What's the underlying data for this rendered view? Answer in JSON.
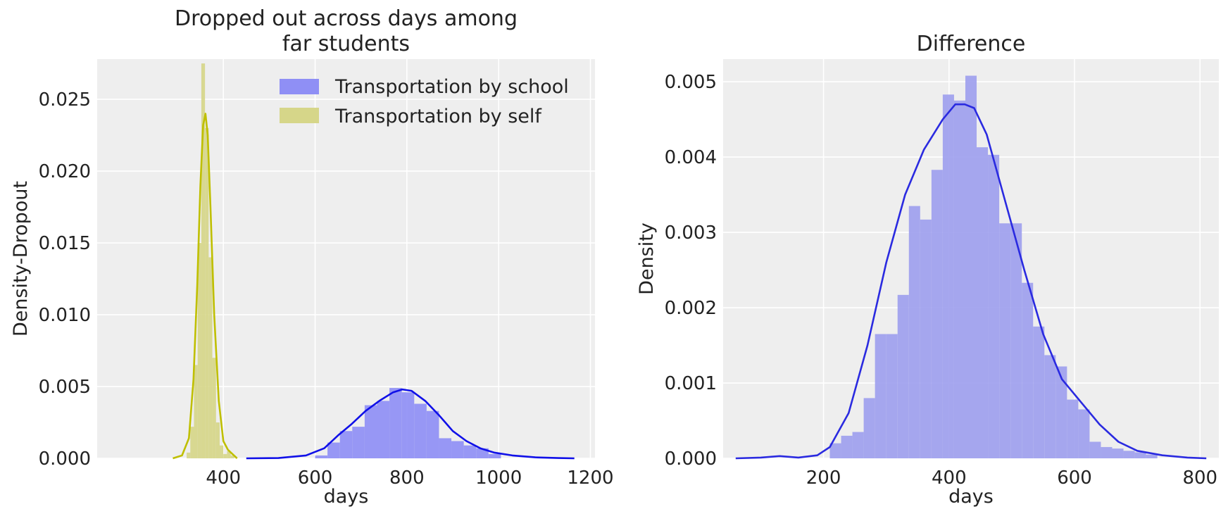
{
  "chart_data": [
    {
      "type": "area",
      "title_lines": [
        "Dropped out across days among",
        "far students"
      ],
      "xlabel": "days",
      "ylabel": "Density-Dropout",
      "xlim": [
        125,
        1210
      ],
      "ylim": [
        0,
        0.0278
      ],
      "xticks": [
        400,
        600,
        800,
        1000,
        1200
      ],
      "yticks": [
        0.0,
        0.005,
        0.01,
        0.015,
        0.02,
        0.025
      ],
      "ytick_labels": [
        "0.000",
        "0.005",
        "0.010",
        "0.015",
        "0.020",
        "0.025"
      ],
      "xtick_labels": [
        "400",
        "600",
        "800",
        "1000",
        "1200"
      ],
      "grid": true,
      "legend_position": "top-right",
      "series": [
        {
          "name": "Transportation by school",
          "hist_color": "#8f8ff5",
          "line_color": "#1010e8",
          "bin_edges": [
            600,
            627,
            654,
            681,
            708,
            735,
            762,
            789,
            816,
            843,
            870,
            897,
            924,
            951,
            978,
            1005
          ],
          "hist_values": [
            0.0002,
            0.0011,
            0.0019,
            0.0022,
            0.0037,
            0.004,
            0.0049,
            0.0046,
            0.0038,
            0.0033,
            0.0014,
            0.0012,
            0.0009,
            0.0007,
            0.0003
          ],
          "kde_x": [
            450,
            520,
            580,
            620,
            650,
            680,
            710,
            740,
            770,
            790,
            810,
            840,
            870,
            900,
            930,
            960,
            990,
            1030,
            1080,
            1130,
            1165
          ],
          "kde_y": [
            0.0,
            2e-05,
            0.0002,
            0.0007,
            0.0016,
            0.0024,
            0.0033,
            0.004,
            0.0046,
            0.0048,
            0.0047,
            0.004,
            0.003,
            0.0019,
            0.0012,
            0.0007,
            0.0004,
            0.0002,
            7e-05,
            2e-05,
            0.0
          ]
        },
        {
          "name": "Transportation by self",
          "hist_color": "#d6d689",
          "line_color": "#bfbf00",
          "bin_edges": [
            320,
            328,
            336,
            344,
            352,
            360,
            368,
            376,
            384,
            392,
            400,
            408,
            416,
            424
          ],
          "hist_values": [
            0.0004,
            0.0022,
            0.0065,
            0.015,
            0.0275,
            0.023,
            0.014,
            0.007,
            0.0025,
            0.0009,
            0.0003,
            0.0005,
            0.0002
          ],
          "kde_x": [
            290,
            310,
            325,
            335,
            343,
            350,
            356,
            361,
            366,
            372,
            380,
            390,
            400,
            410,
            420,
            430
          ],
          "kde_y": [
            0.0,
            0.0002,
            0.0014,
            0.0055,
            0.012,
            0.019,
            0.0232,
            0.024,
            0.0225,
            0.0175,
            0.01,
            0.004,
            0.0012,
            0.0006,
            0.0003,
            0.0
          ]
        }
      ]
    },
    {
      "type": "area",
      "title_lines": [
        "Difference"
      ],
      "xlabel": "days",
      "ylabel": "Density",
      "xlim": [
        40,
        830
      ],
      "ylim": [
        0,
        0.0053
      ],
      "xticks": [
        200,
        400,
        600,
        800
      ],
      "yticks": [
        0.0,
        0.001,
        0.002,
        0.003,
        0.004,
        0.005
      ],
      "ytick_labels": [
        "0.000",
        "0.001",
        "0.002",
        "0.003",
        "0.004",
        "0.005"
      ],
      "xtick_labels": [
        "200",
        "400",
        "600",
        "800"
      ],
      "grid": true,
      "series": [
        {
          "hist_color": "#9ea0ee",
          "line_color": "#2a2ae0",
          "bin_edges": [
            210,
            228,
            246,
            264,
            282,
            300,
            318,
            336,
            354,
            372,
            390,
            408,
            426,
            444,
            462,
            480,
            498,
            516,
            534,
            552,
            570,
            588,
            606,
            624,
            642,
            660,
            678,
            696,
            714,
            732
          ],
          "hist_values": [
            0.0002,
            0.0003,
            0.00035,
            0.0008,
            0.00165,
            0.00165,
            0.00217,
            0.00335,
            0.00317,
            0.00383,
            0.00483,
            0.00475,
            0.00508,
            0.00413,
            0.00403,
            0.00312,
            0.00312,
            0.00233,
            0.00175,
            0.00137,
            0.00122,
            0.00078,
            0.00065,
            0.00022,
            0.00015,
            0.00013,
            0.0001,
            8e-05,
            5e-05
          ],
          "kde_x": [
            60,
            100,
            130,
            160,
            190,
            210,
            240,
            270,
            300,
            330,
            360,
            390,
            410,
            425,
            440,
            460,
            490,
            520,
            550,
            580,
            610,
            640,
            670,
            700,
            740,
            780,
            810
          ],
          "kde_y": [
            0.0,
            1e-05,
            3e-05,
            1e-05,
            4e-05,
            0.00015,
            0.0006,
            0.0015,
            0.0026,
            0.0035,
            0.0041,
            0.0045,
            0.0047,
            0.0047,
            0.00465,
            0.0043,
            0.0034,
            0.0025,
            0.00165,
            0.00105,
            0.00075,
            0.00045,
            0.00022,
            0.0001,
            4e-05,
            1e-05,
            0.0
          ]
        }
      ]
    }
  ]
}
